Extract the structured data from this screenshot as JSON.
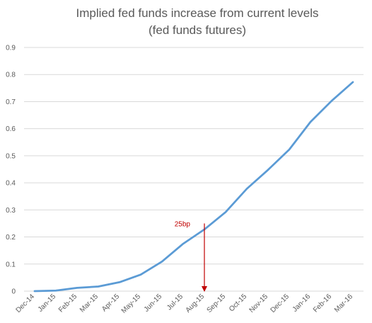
{
  "chart_data": {
    "type": "line",
    "title": "Implied fed funds increase from current levels",
    "subtitle": "(fed funds futures)",
    "xlabel": "",
    "ylabel": "",
    "categories": [
      "Dec-14",
      "Jan-15",
      "Feb-15",
      "Mar-15",
      "Apr-15",
      "May-15",
      "Jun-15",
      "Jul-15",
      "Aug-15",
      "Sep-15",
      "Oct-15",
      "Nov-15",
      "Dec-15",
      "Jan-16",
      "Feb-16",
      "Mar-16"
    ],
    "series": [
      {
        "values": [
          0.0,
          0.002,
          0.012,
          0.017,
          0.033,
          0.061,
          0.109,
          0.175,
          0.228,
          0.292,
          0.378,
          0.448,
          0.523,
          0.625,
          0.703,
          0.772
        ],
        "color": "#5b9bd5"
      }
    ],
    "ylim": [
      0,
      0.9
    ],
    "yticks": [
      "0",
      "0.1",
      "0.2",
      "0.3",
      "0.4",
      "0.5",
      "0.6",
      "0.7",
      "0.8",
      "0.9"
    ],
    "grid": true,
    "legend": "none",
    "annotation": {
      "text": "25bp",
      "y_value": 0.25,
      "x_position": 8.5,
      "color": "#c00000"
    }
  }
}
